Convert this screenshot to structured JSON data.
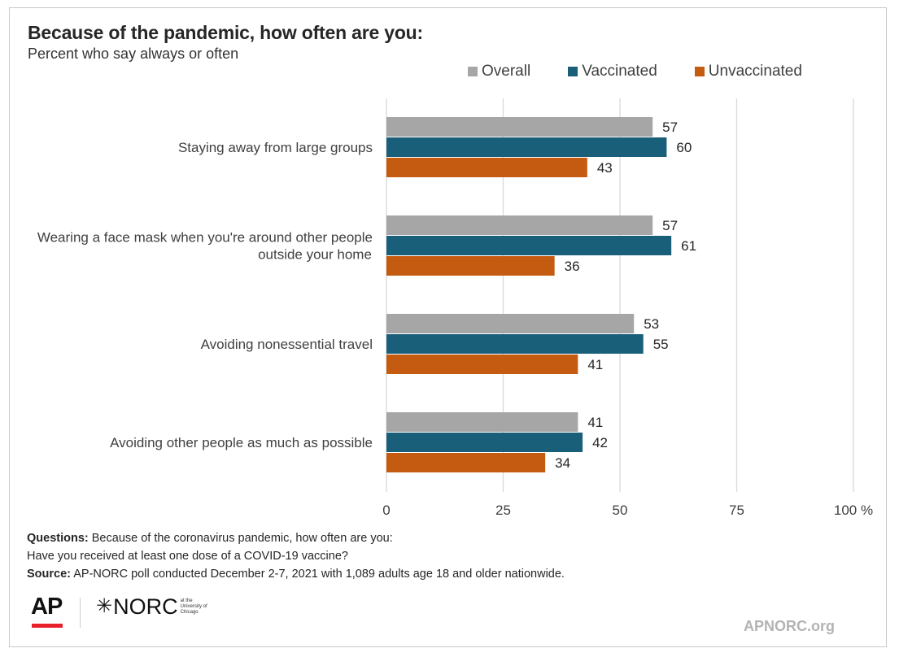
{
  "header": {
    "title": "Because of the pandemic, how often are you:",
    "subtitle": "Percent who say always or often"
  },
  "legend": [
    {
      "label": "Overall",
      "color": "#a6a6a6"
    },
    {
      "label": "Vaccinated",
      "color": "#1a5f7a"
    },
    {
      "label": "Unvaccinated",
      "color": "#c55a11"
    }
  ],
  "chart_data": {
    "type": "bar",
    "orientation": "horizontal",
    "title": "Because of the pandemic, how often are you:",
    "subtitle": "Percent who say always or often",
    "categories": [
      [
        "Staying away from large groups"
      ],
      [
        "Wearing a face mask when you're around other people",
        "outside your home"
      ],
      [
        "Avoiding nonessential travel"
      ],
      [
        "Avoiding other people as much as possible"
      ]
    ],
    "series": [
      {
        "name": "Overall",
        "color": "#a6a6a6",
        "values": [
          57,
          57,
          53,
          41
        ]
      },
      {
        "name": "Vaccinated",
        "color": "#1a5f7a",
        "values": [
          60,
          61,
          55,
          42
        ]
      },
      {
        "name": "Unvaccinated",
        "color": "#c55a11",
        "values": [
          43,
          36,
          41,
          34
        ]
      }
    ],
    "xlim": [
      0,
      100
    ],
    "xticks": [
      "0",
      "25",
      "50",
      "75",
      "100 %"
    ],
    "xtick_values": [
      0,
      25,
      50,
      75,
      100
    ],
    "grid": true,
    "legend_position": "top-right"
  },
  "notes": {
    "questions_label": "Questions:",
    "questions_text": " Because of the coronavirus pandemic, how often are you:",
    "questions_line2": "Have you received at least one dose of a COVID-19 vaccine?",
    "source_label": "Source:",
    "source_text": " AP-NORC poll conducted December 2-7, 2021 with 1,089 adults age 18 and older nationwide."
  },
  "footer": {
    "ap_logo": "AP",
    "ap_accent": "#e8202a",
    "norc_logo": "NORC",
    "norc_small": [
      "at the",
      "University of",
      "Chicago"
    ],
    "website": "APNORC.org"
  }
}
